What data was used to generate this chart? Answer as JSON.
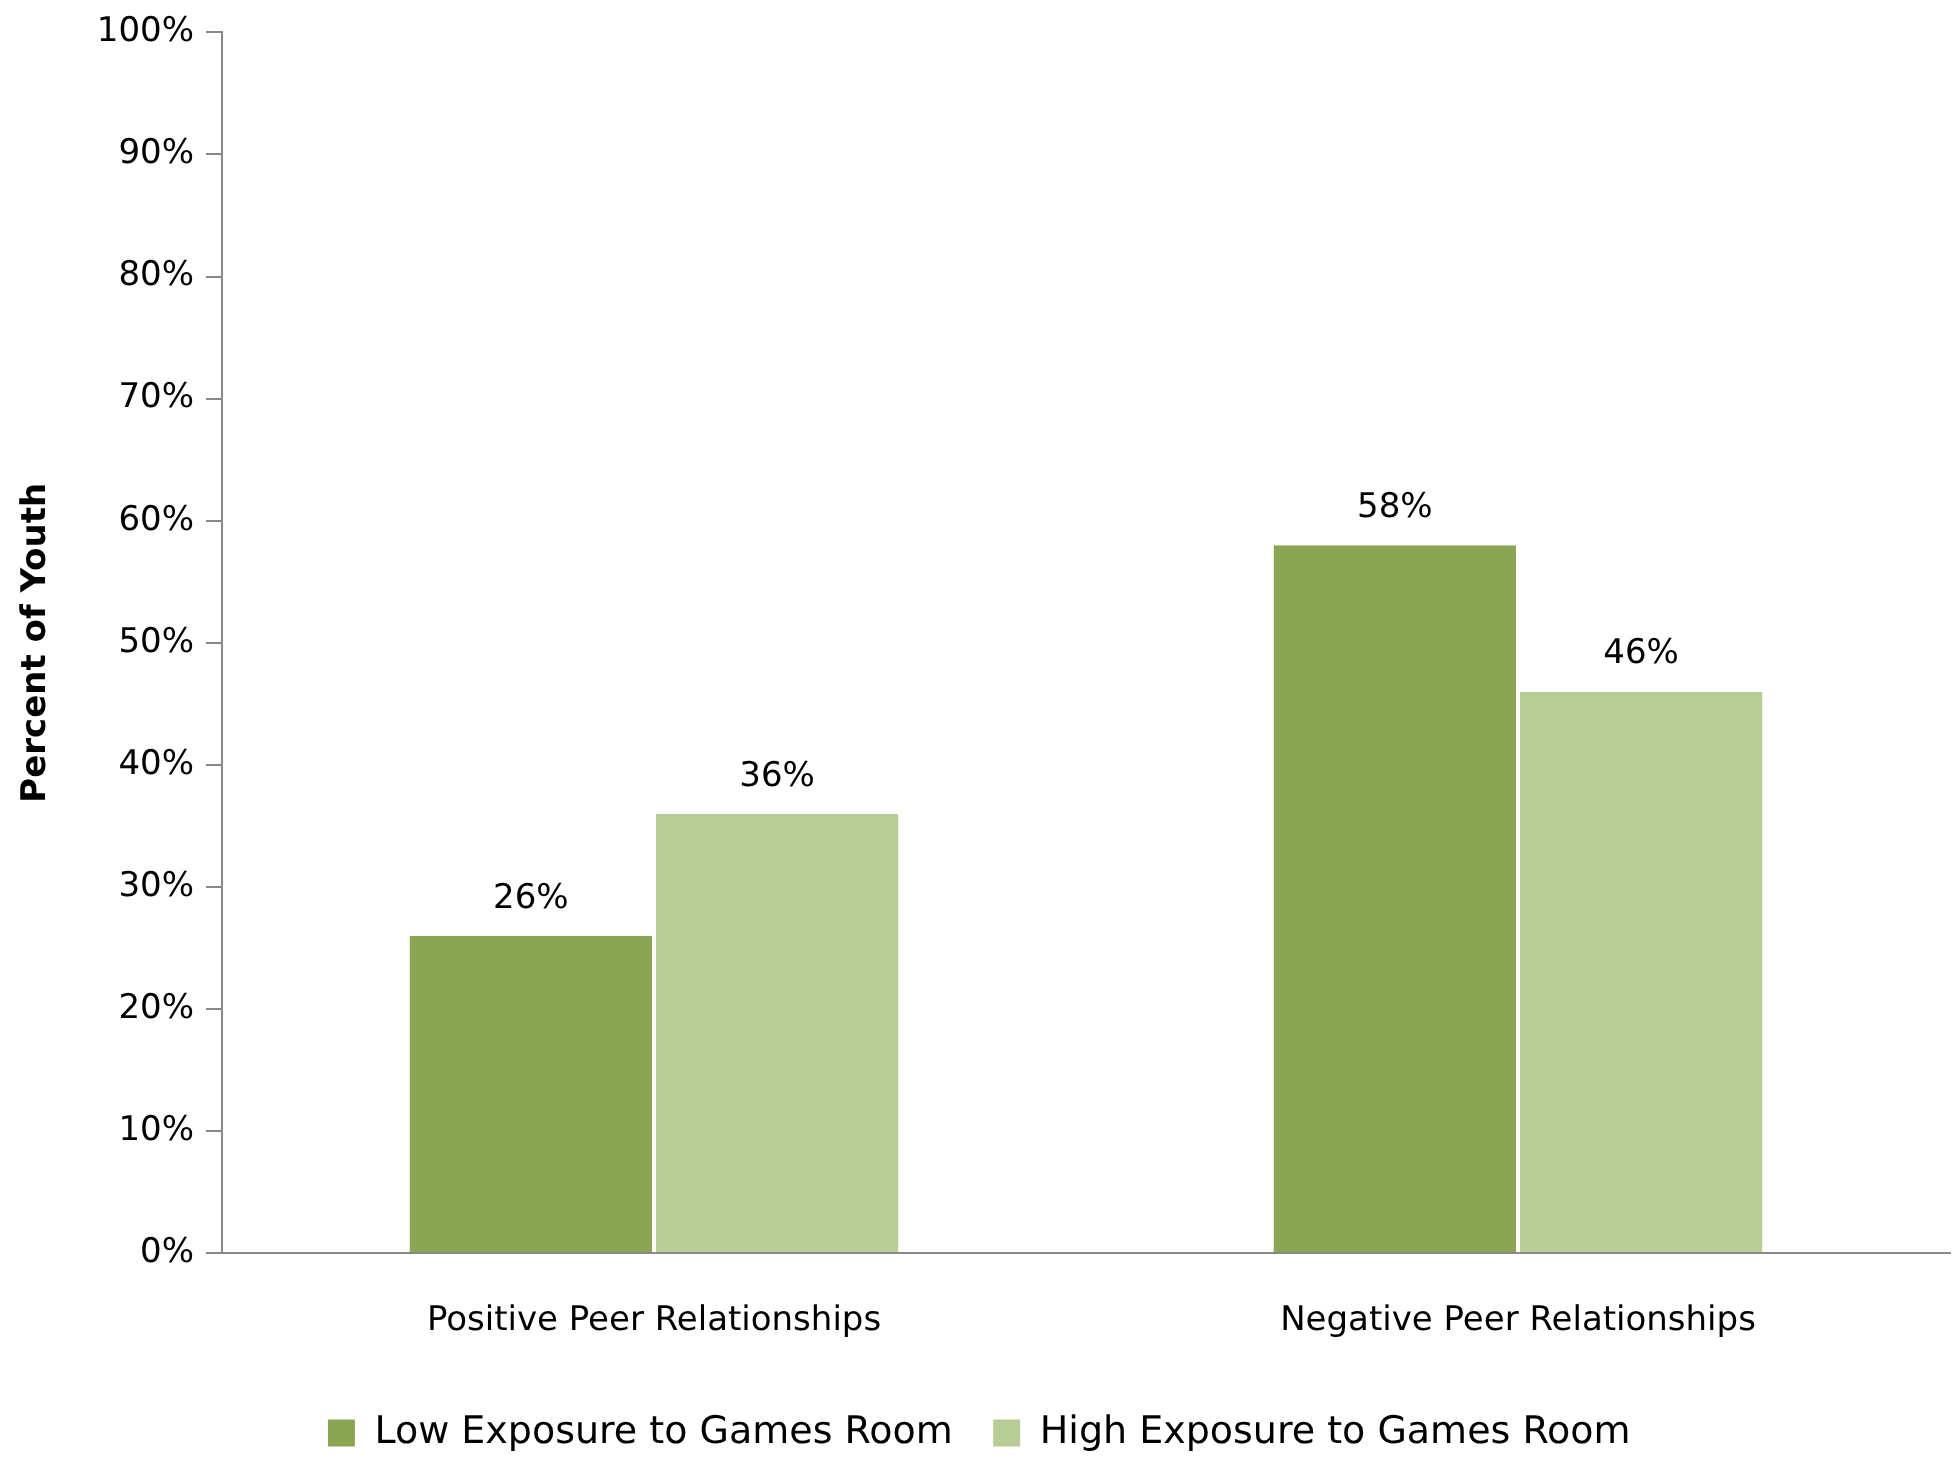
{
  "chart_data": {
    "type": "bar",
    "ylabel": "Percent of Youth",
    "categories": [
      "Positive Peer Relationships",
      "Negative Peer Relationships"
    ],
    "series": [
      {
        "name": "Low Exposure to Games Room",
        "color": "#8aa652",
        "values": [
          26,
          58
        ]
      },
      {
        "name": "High Exposure to Games Room",
        "color": "#b8cd96",
        "values": [
          36,
          46
        ]
      }
    ],
    "ylim": [
      0,
      100
    ],
    "yticks": [
      {
        "value": 0,
        "label": "0%"
      },
      {
        "value": 10,
        "label": "10%"
      },
      {
        "value": 20,
        "label": "20%"
      },
      {
        "value": 30,
        "label": "30%"
      },
      {
        "value": 40,
        "label": "40%"
      },
      {
        "value": 50,
        "label": "50%"
      },
      {
        "value": 60,
        "label": "60%"
      },
      {
        "value": 70,
        "label": "70%"
      },
      {
        "value": 80,
        "label": "80%"
      },
      {
        "value": 90,
        "label": "90%"
      },
      {
        "value": 100,
        "label": "100%"
      }
    ],
    "value_labels": [
      [
        "26%",
        "58%"
      ],
      [
        "36%",
        "46%"
      ]
    ],
    "legend": "bottom",
    "grid": false
  }
}
